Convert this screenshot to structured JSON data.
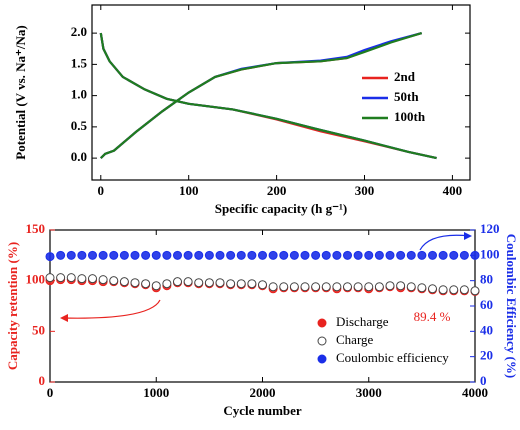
{
  "chart_data": [
    {
      "type": "line",
      "xlabel": "Specific capacity (h g⁻¹)",
      "ylabel": "Potential (V vs. Na⁺/Na)",
      "xlim": [
        -10,
        420
      ],
      "ylim": [
        -0.35,
        2.45
      ],
      "xticks": [
        0,
        100,
        200,
        300,
        400
      ],
      "yticks": [
        {
          "value": 0,
          "label": "0.0"
        },
        0.5,
        {
          "value": 1,
          "label": "1.0"
        },
        1.5,
        {
          "value": 2,
          "label": "2.0"
        }
      ],
      "legend": "right",
      "series": [
        {
          "name": "2nd",
          "color": "#e8231f",
          "x": [
            0,
            3,
            10,
            25,
            50,
            75,
            100,
            150,
            200,
            250,
            300,
            350,
            382,
            null,
            0,
            5,
            15,
            40,
            70,
            100,
            130,
            160,
            200,
            250,
            280,
            300,
            330,
            365
          ],
          "values": [
            2.0,
            1.75,
            1.55,
            1.3,
            1.1,
            0.95,
            0.87,
            0.78,
            0.62,
            0.43,
            0.27,
            0.1,
            0.0,
            null,
            0.0,
            0.07,
            0.12,
            0.42,
            0.75,
            1.05,
            1.3,
            1.42,
            1.52,
            1.55,
            1.6,
            1.71,
            1.86,
            2.0
          ]
        },
        {
          "name": "50th",
          "color": "#1a2ee8",
          "x": [
            0,
            3,
            10,
            25,
            50,
            75,
            100,
            150,
            200,
            250,
            300,
            350,
            382,
            null,
            0,
            5,
            15,
            40,
            70,
            100,
            130,
            160,
            200,
            250,
            280,
            300,
            330,
            365
          ],
          "values": [
            2.0,
            1.75,
            1.55,
            1.3,
            1.1,
            0.95,
            0.87,
            0.78,
            0.63,
            0.45,
            0.28,
            0.1,
            0.0,
            null,
            0.0,
            0.07,
            0.12,
            0.42,
            0.75,
            1.05,
            1.3,
            1.43,
            1.52,
            1.56,
            1.62,
            1.73,
            1.87,
            2.0
          ]
        },
        {
          "name": "100th",
          "color": "#1f7d1f",
          "x": [
            0,
            3,
            10,
            25,
            50,
            75,
            100,
            150,
            200,
            250,
            300,
            350,
            382,
            null,
            0,
            5,
            15,
            40,
            70,
            100,
            130,
            160,
            200,
            250,
            280,
            300,
            330,
            365
          ],
          "values": [
            2.0,
            1.75,
            1.55,
            1.3,
            1.1,
            0.95,
            0.87,
            0.78,
            0.63,
            0.45,
            0.28,
            0.1,
            0.0,
            null,
            0.0,
            0.07,
            0.12,
            0.42,
            0.75,
            1.05,
            1.3,
            1.42,
            1.52,
            1.55,
            1.6,
            1.7,
            1.85,
            2.0
          ]
        }
      ]
    },
    {
      "type": "scatter",
      "xlabel": "Cycle number",
      "ylabel": "Capacity retention (%)",
      "ylabel_color": "#e8231f",
      "y2label": "Coulombic Efficiency (%)",
      "y2label_color": "#1a2ee8",
      "xlim": [
        0,
        4000
      ],
      "ylim": [
        0,
        150
      ],
      "y2lim": [
        0,
        120
      ],
      "xticks": [
        0,
        1000,
        2000,
        3000,
        4000
      ],
      "yticks": [
        0,
        50,
        100,
        150
      ],
      "y2ticks": [
        0,
        20,
        40,
        60,
        80,
        100,
        120
      ],
      "annotations": [
        "89.4 %"
      ],
      "legend": "lower right",
      "x": [
        0,
        100,
        200,
        300,
        400,
        500,
        600,
        700,
        800,
        900,
        1000,
        1100,
        1200,
        1300,
        1400,
        1500,
        1600,
        1700,
        1800,
        1900,
        2000,
        2100,
        2200,
        2300,
        2400,
        2500,
        2600,
        2700,
        2800,
        2900,
        3000,
        3100,
        3200,
        3300,
        3400,
        3500,
        3600,
        3700,
        3800,
        3900,
        4000
      ],
      "series": [
        {
          "name": "Discharge",
          "color": "#e8231f",
          "filled": true,
          "values": [
            100,
            101,
            101,
            100,
            100,
            99,
            99,
            98,
            97,
            96,
            93,
            95,
            98,
            98,
            97,
            97,
            97,
            96,
            96,
            96,
            95,
            92,
            93,
            93,
            93,
            93,
            93,
            92,
            93,
            93,
            92,
            93,
            94,
            93,
            93,
            92,
            91,
            90,
            90,
            90,
            89.4
          ]
        },
        {
          "name": "Charge",
          "color": "#444444",
          "filled": false,
          "values": [
            103,
            103,
            103,
            102,
            102,
            101,
            100,
            99,
            98,
            97,
            95,
            97,
            99,
            99,
            98,
            98,
            98,
            97,
            97,
            97,
            96,
            94,
            94,
            94,
            94,
            94,
            94,
            94,
            94,
            94,
            94,
            94,
            95,
            95,
            94,
            93,
            92,
            91,
            91,
            91,
            90
          ]
        },
        {
          "name": "Coulombic efficiency",
          "color": "#1a2ee8",
          "filled": true,
          "axis": "y2",
          "values": [
            99,
            100,
            100,
            100,
            100,
            100,
            100,
            100,
            100,
            100,
            100,
            100,
            100,
            100,
            100,
            100,
            100,
            100,
            100,
            100,
            100,
            100,
            100,
            100,
            100,
            100,
            100,
            100,
            100,
            100,
            100,
            100,
            100,
            100,
            100,
            100,
            100,
            100,
            100,
            100,
            100
          ]
        }
      ]
    }
  ]
}
